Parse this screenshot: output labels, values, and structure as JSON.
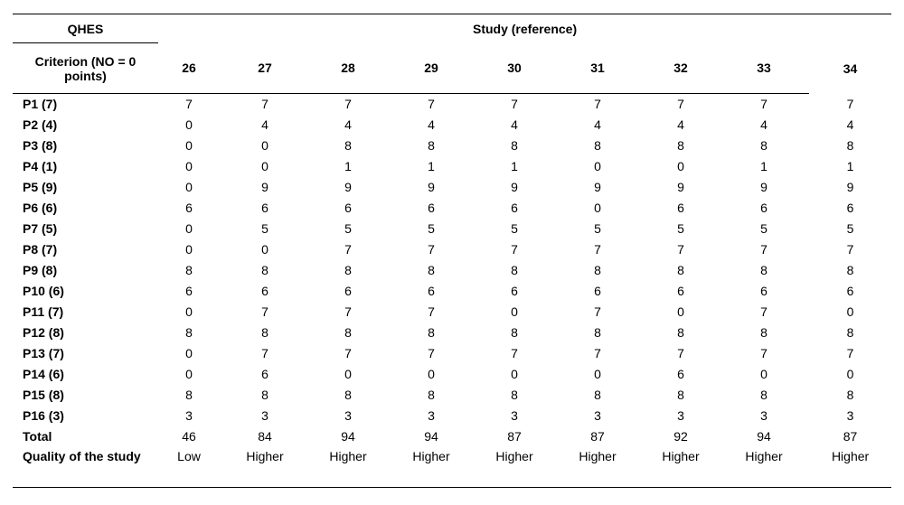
{
  "header": {
    "corner": "QHES",
    "group": "Study (reference)",
    "criterion": "Criterion (NO = 0 points)",
    "studies": [
      "26",
      "27",
      "28",
      "29",
      "30",
      "31",
      "32",
      "33",
      "34"
    ]
  },
  "rows": [
    {
      "label": "P1 (7)",
      "values": [
        "7",
        "7",
        "7",
        "7",
        "7",
        "7",
        "7",
        "7",
        "7"
      ]
    },
    {
      "label": "P2 (4)",
      "values": [
        "0",
        "4",
        "4",
        "4",
        "4",
        "4",
        "4",
        "4",
        "4"
      ]
    },
    {
      "label": "P3 (8)",
      "values": [
        "0",
        "0",
        "8",
        "8",
        "8",
        "8",
        "8",
        "8",
        "8"
      ]
    },
    {
      "label": "P4 (1)",
      "values": [
        "0",
        "0",
        "1",
        "1",
        "1",
        "0",
        "0",
        "1",
        "1"
      ]
    },
    {
      "label": "P5 (9)",
      "values": [
        "0",
        "9",
        "9",
        "9",
        "9",
        "9",
        "9",
        "9",
        "9"
      ]
    },
    {
      "label": "P6 (6)",
      "values": [
        "6",
        "6",
        "6",
        "6",
        "6",
        "0",
        "6",
        "6",
        "6"
      ]
    },
    {
      "label": "P7 (5)",
      "values": [
        "0",
        "5",
        "5",
        "5",
        "5",
        "5",
        "5",
        "5",
        "5"
      ]
    },
    {
      "label": "P8 (7)",
      "values": [
        "0",
        "0",
        "7",
        "7",
        "7",
        "7",
        "7",
        "7",
        "7"
      ]
    },
    {
      "label": "P9 (8)",
      "values": [
        "8",
        "8",
        "8",
        "8",
        "8",
        "8",
        "8",
        "8",
        "8"
      ]
    },
    {
      "label": "P10 (6)",
      "values": [
        "6",
        "6",
        "6",
        "6",
        "6",
        "6",
        "6",
        "6",
        "6"
      ]
    },
    {
      "label": "P11 (7)",
      "values": [
        "0",
        "7",
        "7",
        "7",
        "0",
        "7",
        "0",
        "7",
        "0"
      ]
    },
    {
      "label": "P12 (8)",
      "values": [
        "8",
        "8",
        "8",
        "8",
        "8",
        "8",
        "8",
        "8",
        "8"
      ]
    },
    {
      "label": "P13 (7)",
      "values": [
        "0",
        "7",
        "7",
        "7",
        "7",
        "7",
        "7",
        "7",
        "7"
      ]
    },
    {
      "label": "P14 (6)",
      "values": [
        "0",
        "6",
        "0",
        "0",
        "0",
        "0",
        "6",
        "0",
        "0"
      ]
    },
    {
      "label": "P15 (8)",
      "values": [
        "8",
        "8",
        "8",
        "8",
        "8",
        "8",
        "8",
        "8",
        "8"
      ]
    },
    {
      "label": "P16 (3)",
      "values": [
        "3",
        "3",
        "3",
        "3",
        "3",
        "3",
        "3",
        "3",
        "3"
      ]
    }
  ],
  "total": {
    "label": "Total",
    "values": [
      "46",
      "84",
      "94",
      "94",
      "87",
      "87",
      "92",
      "94",
      "87"
    ]
  },
  "quality": {
    "label": "Quality of the study",
    "values": [
      "Low",
      "Higher",
      "Higher",
      "Higher",
      "Higher",
      "Higher",
      "Higher",
      "Higher",
      "Higher"
    ]
  }
}
